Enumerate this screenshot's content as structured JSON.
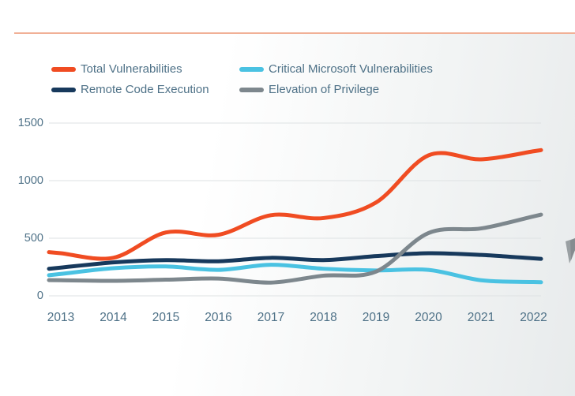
{
  "header": {
    "rule_color": "#f1b096"
  },
  "decor": {
    "wedge_color": "#9aa0a3",
    "wedge_edge_color": "#868c90"
  },
  "axis": {
    "text_color": "#4e7187",
    "gridline_color": "#dee2e3"
  },
  "chart_data": {
    "type": "line",
    "title": "",
    "xlabel": "",
    "ylabel": "",
    "ylim": [
      0,
      1500
    ],
    "y_ticks": [
      0,
      500,
      1000,
      1500
    ],
    "grid": true,
    "legend_position": "top",
    "categories": [
      "2013",
      "2014",
      "2015",
      "2016",
      "2017",
      "2018",
      "2019",
      "2020",
      "2021",
      "2022"
    ],
    "series": [
      {
        "name": "Total Vulnerabilities",
        "color": "#f04c22",
        "values": [
          370,
          330,
          550,
          530,
          700,
          675,
          810,
          1220,
          1185,
          1255
        ]
      },
      {
        "name": "Critical Microsoft Vulnerabilities",
        "color": "#4ac2e2",
        "values": [
          190,
          240,
          255,
          225,
          270,
          235,
          220,
          225,
          135,
          120
        ]
      },
      {
        "name": "Remote Code Execution",
        "color": "#17395c",
        "values": [
          245,
          290,
          310,
          300,
          330,
          310,
          345,
          370,
          355,
          325
        ]
      },
      {
        "name": "Elevation of Privilege",
        "color": "#7d878d",
        "values": [
          135,
          130,
          140,
          150,
          115,
          175,
          210,
          545,
          585,
          690
        ]
      }
    ]
  }
}
